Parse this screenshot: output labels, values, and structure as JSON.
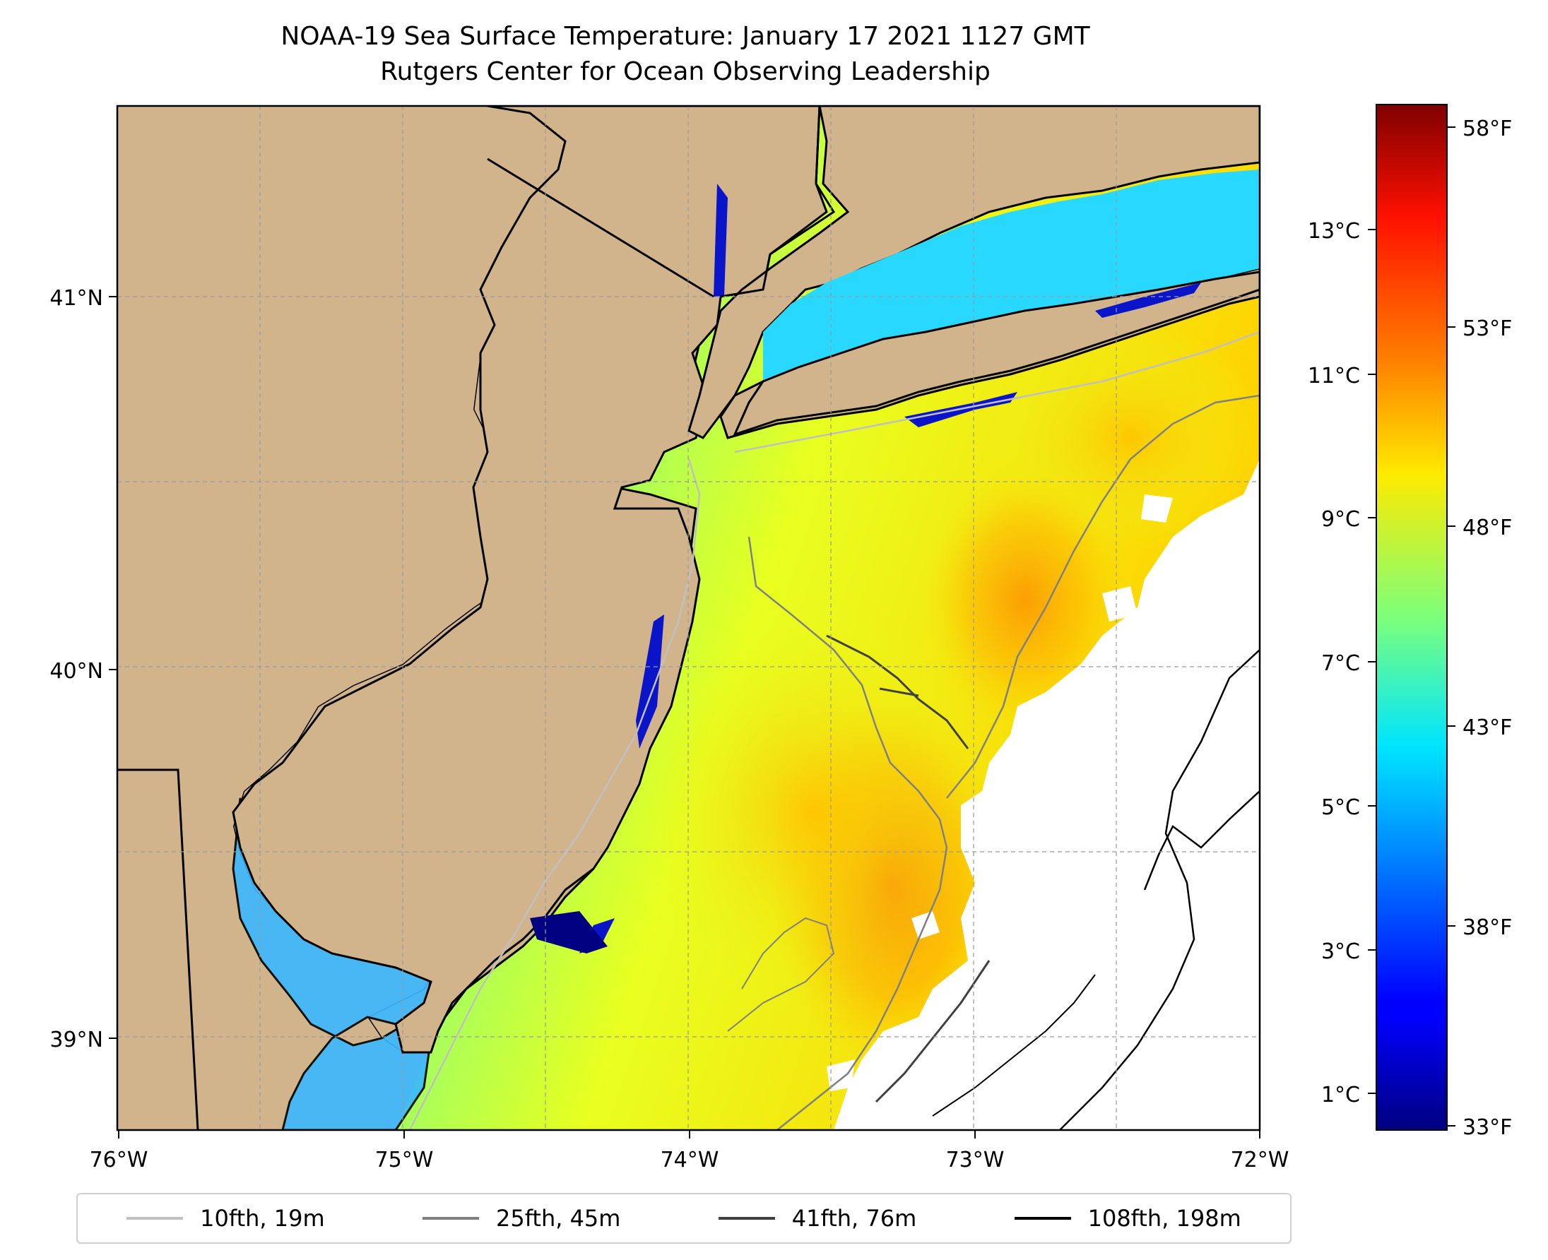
{
  "title": "NOAA-19 Sea Surface Temperature: January 17 2021 1127 GMT",
  "subtitle": "Rutgers Center for Ocean Observing Leadership",
  "map": {
    "lon_range": [
      -76,
      -72
    ],
    "lat_range": [
      38.7,
      41.5
    ],
    "lon_ticks": [
      "76°W",
      "75°W",
      "74°W",
      "73°W",
      "72°W"
    ],
    "lat_ticks": [
      "41°N",
      "40°N",
      "39°N"
    ],
    "grid": true,
    "land_color": "#d2b48c",
    "no_data_color": "#ffffff"
  },
  "colorbar": {
    "colormap": "jet",
    "celsius_ticks": [
      "13°C",
      "11°C",
      "9°C",
      "7°C",
      "5°C",
      "3°C",
      "1°C"
    ],
    "fahrenheit_ticks": [
      "58°F",
      "53°F",
      "48°F",
      "43°F",
      "38°F",
      "33°F"
    ],
    "min_f": 33,
    "max_f": 58.5
  },
  "legend": [
    {
      "label": "10fth, 19m",
      "color": "#c0c0c0"
    },
    {
      "label": "25fth, 45m",
      "color": "#808080"
    },
    {
      "label": "41fth, 76m",
      "color": "#404040"
    },
    {
      "label": "108fth, 198m",
      "color": "#000000"
    }
  ]
}
